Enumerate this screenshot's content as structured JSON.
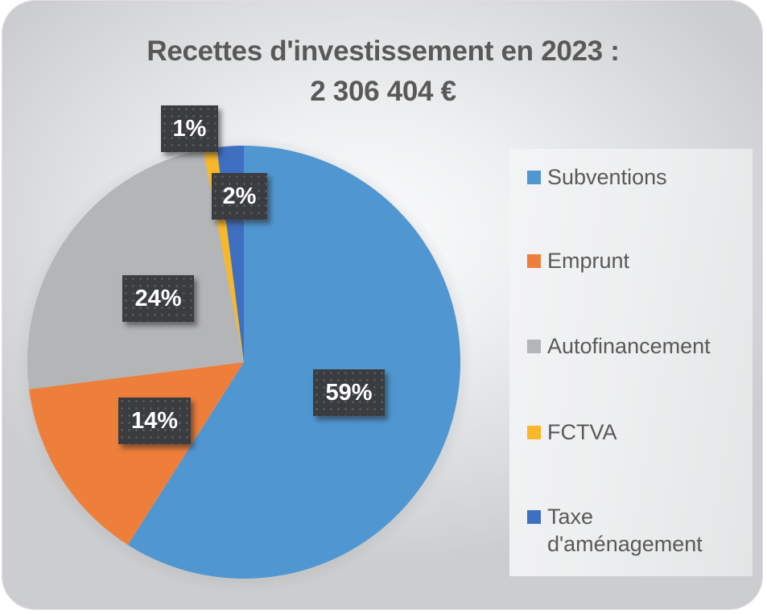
{
  "chart_data": {
    "type": "pie",
    "title": "Recettes d'investissement en 2023 :",
    "subtitle": "2 306 404 €",
    "categories": [
      "Subventions",
      "Emprunt",
      "Autofinancement",
      "FCTVA",
      "Taxe d'aménagement"
    ],
    "values": [
      59,
      14,
      24,
      1,
      2
    ],
    "value_labels": [
      "59%",
      "14%",
      "24%",
      "1%",
      "2%"
    ],
    "colors": [
      "#5097d1",
      "#ee7f3b",
      "#b4b5b7",
      "#f8b829",
      "#3f6fc0"
    ],
    "start_angle_deg": 0,
    "direction": "clockwise",
    "legend_position": "right"
  },
  "title": {
    "line1": "Recettes d'investissement en 2023 :",
    "line2": "2 306 404 €"
  },
  "legend": {
    "items": [
      {
        "label": "Subventions",
        "color": "#5097d1"
      },
      {
        "label": "Emprunt",
        "color": "#ee7f3b"
      },
      {
        "label": "Autofinancement",
        "color": "#b4b5b7"
      },
      {
        "label": "FCTVA",
        "color": "#f8b829"
      },
      {
        "label": "Taxe\nd'aménagement",
        "color": "#3f6fc0"
      }
    ]
  },
  "labels": {
    "subventions": "59%",
    "emprunt": "14%",
    "autofinancement": "24%",
    "fctva": "1%",
    "taxe": "2%"
  }
}
